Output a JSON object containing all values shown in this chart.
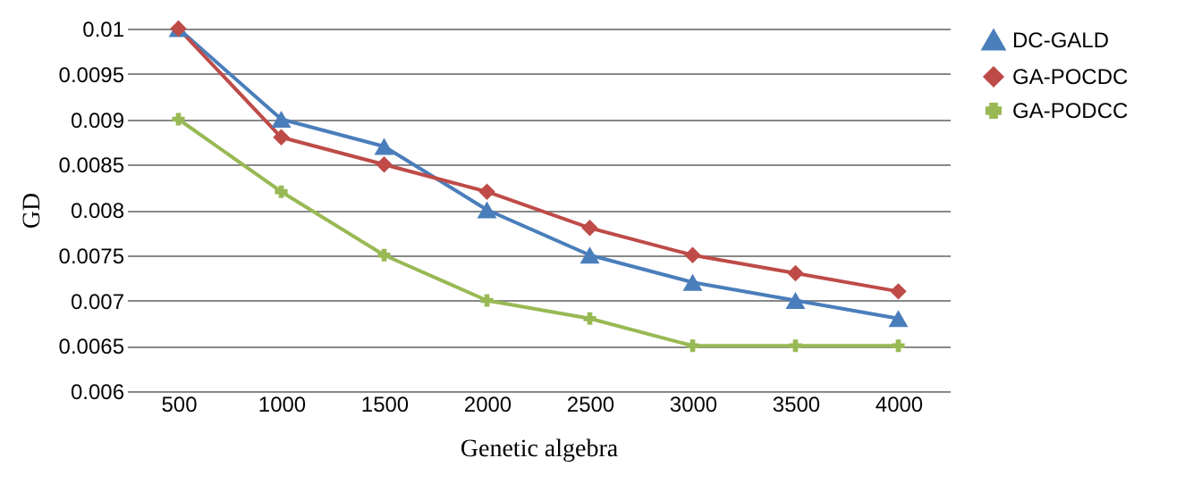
{
  "chart_data": {
    "type": "line",
    "xlabel": "Genetic algebra",
    "ylabel": "GD",
    "categories": [
      "500",
      "1000",
      "1500",
      "2000",
      "2500",
      "3000",
      "3500",
      "4000"
    ],
    "series": [
      {
        "name": "DC-GALD",
        "color": "#4a7ebb",
        "marker": "triangle",
        "values": [
          0.01,
          0.009,
          0.0087,
          0.008,
          0.0075,
          0.0072,
          0.007,
          0.0068
        ]
      },
      {
        "name": "GA-POCDC",
        "color": "#be4b48",
        "marker": "diamond",
        "values": [
          0.01,
          0.0088,
          0.0085,
          0.0082,
          0.0078,
          0.0075,
          0.0073,
          0.0071
        ]
      },
      {
        "name": "GA-PODCC",
        "color": "#98b954",
        "marker": "cross",
        "values": [
          0.009,
          0.0082,
          0.0075,
          0.007,
          0.0068,
          0.0065,
          0.0065,
          0.0065
        ]
      }
    ],
    "ylim": [
      0.006,
      0.01
    ],
    "yticks": [
      0.006,
      0.0065,
      0.007,
      0.0075,
      0.008,
      0.0085,
      0.009,
      0.0095,
      0.01
    ],
    "grid": "y",
    "legend": "right"
  }
}
